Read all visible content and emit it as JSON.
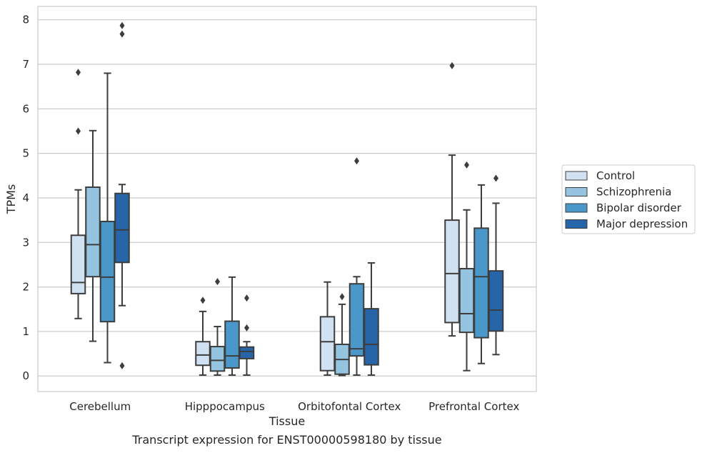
{
  "chart_data": {
    "type": "box",
    "caption": "Transcript expression for ENST00000598180 by tissue",
    "xlabel": "Tissue",
    "ylabel": "TPMs",
    "ylim": [
      -0.35,
      8.3
    ],
    "yticks": [
      0,
      1,
      2,
      3,
      4,
      5,
      6,
      7,
      8
    ],
    "grid": "horizontal",
    "legend_position": "right",
    "categories": [
      "Cerebellum",
      "Hipppocampus",
      "Orbitofontal Cortex",
      "Prefrontal Cortex"
    ],
    "series": [
      {
        "name": "Control",
        "color": "#d0e1f2",
        "boxes": [
          {
            "whisker_low": 1.29,
            "q1": 1.85,
            "median": 2.1,
            "q3": 3.16,
            "whisker_high": 4.18,
            "outliers": [
              5.5,
              6.82
            ]
          },
          {
            "whisker_low": 0.02,
            "q1": 0.24,
            "median": 0.47,
            "q3": 0.77,
            "whisker_high": 1.45,
            "outliers": [
              1.7
            ]
          },
          {
            "whisker_low": 0.02,
            "q1": 0.12,
            "median": 0.77,
            "q3": 1.33,
            "whisker_high": 2.11,
            "outliers": []
          },
          {
            "whisker_low": 0.9,
            "q1": 1.2,
            "median": 2.3,
            "q3": 3.5,
            "whisker_high": 4.96,
            "outliers": [
              6.97
            ]
          }
        ]
      },
      {
        "name": "Schizophrenia",
        "color": "#94c4df",
        "boxes": [
          {
            "whisker_low": 0.78,
            "q1": 2.23,
            "median": 2.95,
            "q3": 4.24,
            "whisker_high": 5.51,
            "outliers": []
          },
          {
            "whisker_low": 0.02,
            "q1": 0.11,
            "median": 0.35,
            "q3": 0.66,
            "whisker_high": 1.11,
            "outliers": [
              2.12
            ]
          },
          {
            "whisker_low": 0.01,
            "q1": 0.04,
            "median": 0.37,
            "q3": 0.71,
            "whisker_high": 1.61,
            "outliers": [
              1.78
            ]
          },
          {
            "whisker_low": 0.12,
            "q1": 0.98,
            "median": 1.4,
            "q3": 2.41,
            "whisker_high": 3.73,
            "outliers": [
              4.74
            ]
          }
        ]
      },
      {
        "name": "Bipolar disorder",
        "color": "#4a98c9",
        "boxes": [
          {
            "whisker_low": 0.3,
            "q1": 1.22,
            "median": 2.22,
            "q3": 3.47,
            "whisker_high": 6.8,
            "outliers": []
          },
          {
            "whisker_low": 0.02,
            "q1": 0.18,
            "median": 0.45,
            "q3": 1.23,
            "whisker_high": 2.22,
            "outliers": []
          },
          {
            "whisker_low": 0.02,
            "q1": 0.45,
            "median": 0.61,
            "q3": 2.07,
            "whisker_high": 2.23,
            "outliers": [
              4.83
            ]
          },
          {
            "whisker_low": 0.28,
            "q1": 0.86,
            "median": 2.23,
            "q3": 3.32,
            "whisker_high": 4.29,
            "outliers": []
          }
        ]
      },
      {
        "name": "Major depression",
        "color": "#2666a8",
        "boxes": [
          {
            "whisker_low": 1.58,
            "q1": 2.55,
            "median": 3.28,
            "q3": 4.1,
            "whisker_high": 4.3,
            "outliers": [
              0.23,
              7.68,
              7.87
            ]
          },
          {
            "whisker_low": 0.02,
            "q1": 0.39,
            "median": 0.55,
            "q3": 0.65,
            "whisker_high": 0.77,
            "outliers": [
              1.08,
              1.75
            ]
          },
          {
            "whisker_low": 0.02,
            "q1": 0.25,
            "median": 0.71,
            "q3": 1.51,
            "whisker_high": 2.54,
            "outliers": []
          },
          {
            "whisker_low": 0.48,
            "q1": 1.01,
            "median": 1.48,
            "q3": 2.36,
            "whisker_high": 3.88,
            "outliers": [
              4.44
            ]
          }
        ]
      }
    ]
  }
}
